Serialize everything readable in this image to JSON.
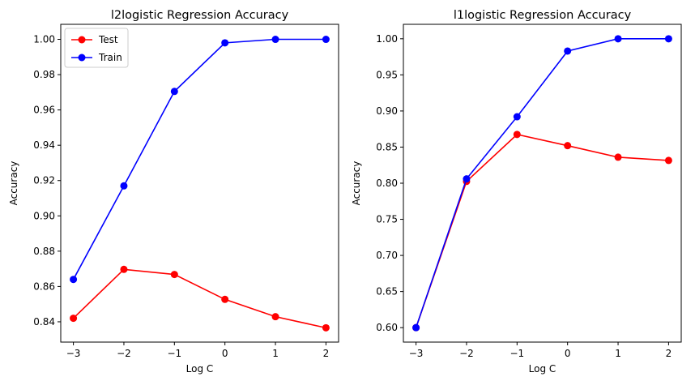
{
  "chart_data": [
    {
      "type": "line",
      "title": "l2logistic Regression Accuracy",
      "xlabel": "Log C",
      "ylabel": "Accuracy",
      "x": [
        -3,
        -2,
        -1,
        0,
        1,
        2
      ],
      "xticks": [
        "−3",
        "−2",
        "−1",
        "0",
        "1",
        "2"
      ],
      "xlim": [
        -3.25,
        2.25
      ],
      "ylim": [
        0.8285,
        1.0085
      ],
      "yticks": [
        "0.84",
        "0.86",
        "0.88",
        "0.90",
        "0.92",
        "0.94",
        "0.96",
        "0.98",
        "1.00"
      ],
      "ytick_values": [
        0.84,
        0.86,
        0.88,
        0.9,
        0.92,
        0.94,
        0.96,
        0.98,
        1.0
      ],
      "grid": false,
      "legend": "top-left",
      "series": [
        {
          "name": "Test",
          "color": "#ff0000",
          "values": [
            0.842,
            0.8697,
            0.8668,
            0.8527,
            0.8429,
            0.8366
          ]
        },
        {
          "name": "Train",
          "color": "#0000ff",
          "values": [
            0.864,
            0.917,
            0.9705,
            0.998,
            1.0,
            1.0
          ]
        }
      ]
    },
    {
      "type": "line",
      "title": "l1logistic Regression Accuracy",
      "xlabel": "Log C",
      "ylabel": "Accuracy",
      "x": [
        -3,
        -2,
        -1,
        0,
        1,
        2
      ],
      "xticks": [
        "−3",
        "−2",
        "−1",
        "0",
        "1",
        "2"
      ],
      "xlim": [
        -3.25,
        2.25
      ],
      "ylim": [
        0.58,
        1.02
      ],
      "yticks": [
        "0.60",
        "0.65",
        "0.70",
        "0.75",
        "0.80",
        "0.85",
        "0.90",
        "0.95",
        "1.00"
      ],
      "ytick_values": [
        0.6,
        0.65,
        0.7,
        0.75,
        0.8,
        0.85,
        0.9,
        0.95,
        1.0
      ],
      "grid": false,
      "legend": "none",
      "series": [
        {
          "name": "Test",
          "color": "#ff0000",
          "values": [
            0.6,
            0.8025,
            0.8675,
            0.852,
            0.836,
            0.8315
          ]
        },
        {
          "name": "Train",
          "color": "#0000ff",
          "values": [
            0.6,
            0.806,
            0.892,
            0.983,
            1.0,
            1.0
          ]
        }
      ]
    }
  ]
}
